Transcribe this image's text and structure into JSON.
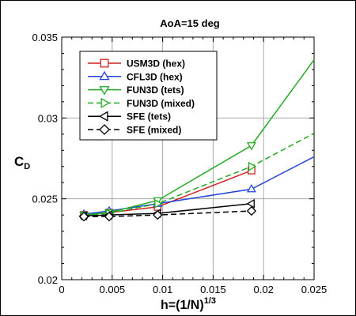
{
  "chart_data": {
    "type": "line",
    "title": "AoA=15 deg",
    "xlabel": "h=(1/N)",
    "xlabel_sup": "1/3",
    "ylabel": "C",
    "ylabel_sub": "D",
    "xlim": [
      0,
      0.025
    ],
    "ylim": [
      0.02,
      0.035
    ],
    "x_ticks": [
      "0",
      "0.005",
      "0.01",
      "0.015",
      "0.02",
      "0.025"
    ],
    "y_ticks": [
      "0.02",
      "0.025",
      "0.03",
      "0.035"
    ],
    "legend_position": "top-left",
    "series": [
      {
        "name": "USM3D (hex)",
        "color": "#cc2222",
        "marker": "square",
        "dash": "solid",
        "x": [
          0.0022,
          0.0047,
          0.0095,
          0.0188
        ],
        "y": [
          0.024,
          0.02415,
          0.0245,
          0.02675
        ]
      },
      {
        "name": "CFL3D (hex)",
        "color": "#2244dd",
        "marker": "triangle-up",
        "dash": "solid",
        "x": [
          0.0022,
          0.0047,
          0.0095,
          0.0188,
          0.025
        ],
        "y": [
          0.02405,
          0.02425,
          0.0247,
          0.0256,
          0.0276
        ]
      },
      {
        "name": "FUN3D (tets)",
        "color": "#22aa22",
        "marker": "triangle-down",
        "dash": "solid",
        "x": [
          0.0022,
          0.0047,
          0.0095,
          0.0188,
          0.025
        ],
        "y": [
          0.024,
          0.02415,
          0.0249,
          0.0283,
          0.0336
        ]
      },
      {
        "name": "FUN3D (mixed)",
        "color": "#22aa22",
        "marker": "triangle-right",
        "dash": "dashed",
        "x": [
          0.0022,
          0.0047,
          0.0095,
          0.0188,
          0.025
        ],
        "y": [
          0.02395,
          0.0241,
          0.0247,
          0.027,
          0.02905
        ]
      },
      {
        "name": "SFE (tets)",
        "color": "#000000",
        "marker": "triangle-left",
        "dash": "solid",
        "x": [
          0.0022,
          0.0047,
          0.0095,
          0.0188
        ],
        "y": [
          0.02395,
          0.024,
          0.0241,
          0.0247
        ]
      },
      {
        "name": "SFE (mixed)",
        "color": "#000000",
        "marker": "diamond",
        "dash": "dashed",
        "x": [
          0.0022,
          0.0047,
          0.0095,
          0.0188
        ],
        "y": [
          0.0239,
          0.0239,
          0.024,
          0.02425
        ]
      }
    ]
  }
}
